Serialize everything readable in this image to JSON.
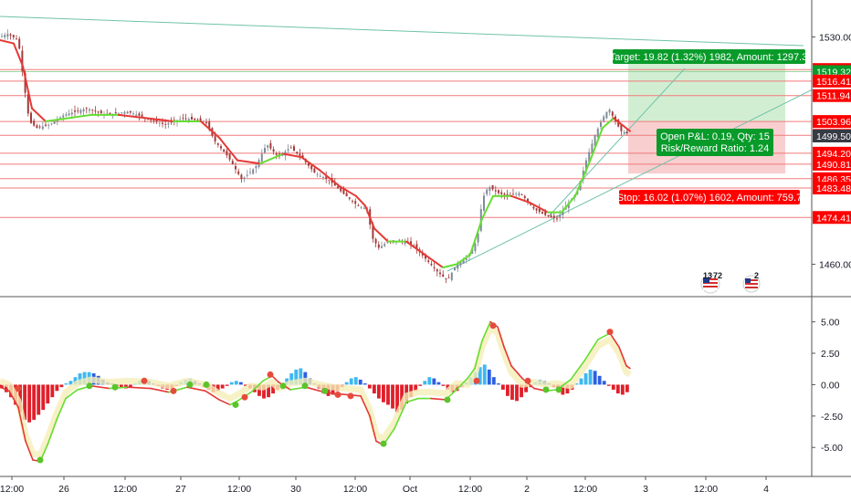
{
  "colors": {
    "background": "#ffffff",
    "axis_line": "#555555",
    "hline": "#f07a7a",
    "tag_red": "#ff0000",
    "tag_dark": "#363a45",
    "tag_green": "#089b2a",
    "profit_zone": "#cdeccd",
    "loss_zone": "#f7c9ca",
    "trendline": "#6fc3a8",
    "candle_up": "#7f8c99",
    "candle_down": "#a23b3b",
    "ma_red": "#e53935",
    "ma_green": "#66dd33",
    "hist_red": "#e0202a",
    "hist_blue": "#2d5fe0",
    "hist_lightblue": "#3fb8f0"
  },
  "chart_data": [
    {
      "type": "candlestick",
      "title": "",
      "ylim": [
        1452,
        1538
      ],
      "y_ticks": [
        1530.0,
        1460.0
      ],
      "price_levels": [
        {
          "label": "1519.96",
          "value": 1519.96,
          "style": "red"
        },
        {
          "label": "1519.32",
          "value": 1519.32,
          "style": "green"
        },
        {
          "label": "1516.41",
          "value": 1516.41,
          "style": "red"
        },
        {
          "label": "1511.94",
          "value": 1511.94,
          "style": "red"
        },
        {
          "label": "1503.96",
          "value": 1503.96,
          "style": "red"
        },
        {
          "label": "1499.69",
          "value": 1499.69,
          "style": "red"
        },
        {
          "label": "1499.50",
          "value": 1499.5,
          "style": "dark"
        },
        {
          "label": "1494.20",
          "value": 1494.2,
          "style": "red"
        },
        {
          "label": "1490.81",
          "value": 1490.81,
          "style": "red"
        },
        {
          "label": "1486.35",
          "value": 1486.35,
          "style": "red"
        },
        {
          "label": "1483.48",
          "value": 1483.48,
          "style": "red"
        },
        {
          "label": "1474.41",
          "value": 1474.41,
          "style": "red"
        }
      ],
      "price_path": [
        [
          0,
          1530
        ],
        [
          8,
          1531
        ],
        [
          20,
          1529
        ],
        [
          26,
          1516
        ],
        [
          32,
          1504
        ],
        [
          40,
          1502
        ],
        [
          55,
          1503
        ],
        [
          70,
          1506
        ],
        [
          95,
          1508
        ],
        [
          115,
          1506
        ],
        [
          140,
          1507
        ],
        [
          160,
          1505
        ],
        [
          180,
          1503
        ],
        [
          200,
          1505
        ],
        [
          225,
          1504
        ],
        [
          235,
          1498
        ],
        [
          250,
          1493
        ],
        [
          265,
          1486
        ],
        [
          280,
          1490
        ],
        [
          292,
          1497
        ],
        [
          305,
          1493
        ],
        [
          318,
          1496
        ],
        [
          330,
          1493
        ],
        [
          345,
          1488
        ],
        [
          360,
          1486
        ],
        [
          375,
          1482
        ],
        [
          392,
          1478
        ],
        [
          402,
          1477
        ],
        [
          408,
          1468
        ],
        [
          415,
          1465
        ],
        [
          425,
          1467
        ],
        [
          440,
          1467
        ],
        [
          452,
          1466
        ],
        [
          462,
          1463
        ],
        [
          478,
          1458
        ],
        [
          490,
          1455
        ],
        [
          500,
          1460
        ],
        [
          512,
          1462
        ],
        [
          520,
          1466
        ],
        [
          524,
          1470
        ],
        [
          528,
          1480
        ],
        [
          535,
          1484
        ],
        [
          545,
          1482
        ],
        [
          555,
          1481
        ],
        [
          570,
          1482
        ],
        [
          585,
          1477
        ],
        [
          598,
          1475
        ],
        [
          610,
          1474
        ],
        [
          620,
          1478
        ],
        [
          632,
          1482
        ],
        [
          642,
          1492
        ],
        [
          652,
          1500
        ],
        [
          660,
          1505
        ],
        [
          667,
          1508
        ],
        [
          672,
          1505
        ],
        [
          680,
          1501
        ],
        [
          690,
          1500
        ]
      ],
      "ma_path": [
        [
          0,
          1529
        ],
        [
          15,
          1528
        ],
        [
          25,
          1521
        ],
        [
          35,
          1508
        ],
        [
          50,
          1504
        ],
        [
          75,
          1505
        ],
        [
          100,
          1506
        ],
        [
          130,
          1506
        ],
        [
          160,
          1505
        ],
        [
          190,
          1504
        ],
        [
          220,
          1504
        ],
        [
          240,
          1499
        ],
        [
          260,
          1492
        ],
        [
          285,
          1491
        ],
        [
          310,
          1494
        ],
        [
          330,
          1493
        ],
        [
          350,
          1489
        ],
        [
          372,
          1484
        ],
        [
          390,
          1481
        ],
        [
          400,
          1478
        ],
        [
          410,
          1471
        ],
        [
          425,
          1467
        ],
        [
          445,
          1467
        ],
        [
          465,
          1463
        ],
        [
          485,
          1459
        ],
        [
          500,
          1460
        ],
        [
          515,
          1463
        ],
        [
          528,
          1474
        ],
        [
          540,
          1481
        ],
        [
          560,
          1481
        ],
        [
          580,
          1479
        ],
        [
          600,
          1476
        ],
        [
          615,
          1476
        ],
        [
          630,
          1481
        ],
        [
          645,
          1491
        ],
        [
          660,
          1502
        ],
        [
          672,
          1505
        ],
        [
          690,
          1501
        ]
      ],
      "x_ticks": [
        {
          "label": "12:00",
          "x": 13
        },
        {
          "label": "26",
          "x": 70
        },
        {
          "label": "12:00",
          "x": 137
        },
        {
          "label": "27",
          "x": 198
        },
        {
          "label": "12:00",
          "x": 262
        },
        {
          "label": "30",
          "x": 324
        },
        {
          "label": "12:00",
          "x": 389
        },
        {
          "label": "Oct",
          "x": 449
        },
        {
          "label": "12:00",
          "x": 515
        },
        {
          "label": "2",
          "x": 577
        },
        {
          "label": "12:00",
          "x": 641
        },
        {
          "label": "3",
          "x": 707
        },
        {
          "label": "12:00",
          "x": 773
        },
        {
          "label": "4",
          "x": 839
        }
      ],
      "position_tool": {
        "entry": 1503.96,
        "target": 1523.78,
        "stop": 1487.94,
        "target_label": "Target: 19.82 (1.32%) 1982, Amount: 1297.3",
        "pnl_label": "Open P&L: 0.19, Qty: 15",
        "rr_label": "Risk/Reward Ratio: 1.24",
        "stop_label": "Stop: 16.02 (1.07%) 1602, Amount: 759.7"
      },
      "badges": [
        "13",
        "72",
        "2"
      ]
    },
    {
      "type": "histogram-oscillator",
      "title": "",
      "ylim": [
        -6.8,
        6.5
      ],
      "y_ticks": [
        "5.00",
        "2.50",
        "0.00",
        "-2.50",
        "-5.00"
      ],
      "y_tick_values": [
        5,
        2.5,
        0,
        -2.5,
        -5
      ],
      "oscillator_path": [
        [
          0,
          -0.2
        ],
        [
          10,
          -0.5
        ],
        [
          20,
          -1.8
        ],
        [
          28,
          -4.5
        ],
        [
          36,
          -6.0
        ],
        [
          44,
          -6.1
        ],
        [
          52,
          -4.8
        ],
        [
          62,
          -2.8
        ],
        [
          72,
          -1.1
        ],
        [
          85,
          -0.4
        ],
        [
          100,
          -0.1
        ],
        [
          120,
          -0.3
        ],
        [
          140,
          -0.2
        ],
        [
          165,
          -0.3
        ],
        [
          185,
          -0.6
        ],
        [
          205,
          -0.2
        ],
        [
          225,
          -0.5
        ],
        [
          240,
          -1.2
        ],
        [
          252,
          -1.6
        ],
        [
          260,
          -1.3
        ],
        [
          275,
          -0.6
        ],
        [
          288,
          0.3
        ],
        [
          298,
          0.7
        ],
        [
          305,
          0.2
        ],
        [
          318,
          -0.4
        ],
        [
          335,
          -0.2
        ],
        [
          350,
          -0.5
        ],
        [
          365,
          -0.7
        ],
        [
          380,
          -0.8
        ],
        [
          395,
          -0.9
        ],
        [
          405,
          -2.5
        ],
        [
          412,
          -4.5
        ],
        [
          420,
          -4.8
        ],
        [
          432,
          -3.5
        ],
        [
          445,
          -1.4
        ],
        [
          458,
          -1.1
        ],
        [
          472,
          -1.1
        ],
        [
          488,
          -1.2
        ],
        [
          500,
          -0.4
        ],
        [
          512,
          0.5
        ],
        [
          520,
          1.3
        ],
        [
          528,
          3.5
        ],
        [
          537,
          5.0
        ],
        [
          545,
          4.6
        ],
        [
          552,
          3.0
        ],
        [
          560,
          1.5
        ],
        [
          572,
          0.5
        ],
        [
          585,
          -0.3
        ],
        [
          598,
          -0.5
        ],
        [
          610,
          -0.4
        ],
        [
          625,
          0.4
        ],
        [
          640,
          1.9
        ],
        [
          655,
          3.6
        ],
        [
          668,
          4.1
        ],
        [
          678,
          3.0
        ],
        [
          686,
          1.5
        ],
        [
          690,
          1.3
        ]
      ],
      "histogram": [
        -0.3,
        -0.6,
        -1.0,
        -1.6,
        -2.2,
        -2.8,
        -3.0,
        -2.8,
        -2.4,
        -2.0,
        -1.5,
        -1.0,
        -0.5,
        -0.2,
        0.1,
        0.3,
        0.6,
        0.9,
        1.0,
        1.0,
        0.9,
        0.7,
        0.4,
        0.2,
        0.1,
        -0.1,
        -0.2,
        -0.3,
        -0.2,
        0.1,
        0.3,
        0.4,
        0.3,
        0.1,
        -0.1,
        -0.3,
        -0.4,
        -0.3,
        -0.1,
        0.2,
        0.4,
        0.5,
        0.3,
        0.1,
        -0.2,
        -0.4,
        -0.6,
        -0.5,
        -0.3,
        -0.1,
        0.2,
        0.3,
        0.2,
        -0.1,
        -0.3,
        -0.6,
        -0.9,
        -1.1,
        -1.0,
        -0.7,
        -0.4,
        0.1,
        0.5,
        0.9,
        1.2,
        1.3,
        1.0,
        0.5,
        0.1,
        -0.3,
        -0.7,
        -0.9,
        -0.8,
        -0.5,
        -0.2,
        0.2,
        0.5,
        0.6,
        0.4,
        0.1,
        -0.3,
        -0.7,
        -1.1,
        -1.4,
        -1.6,
        -1.9,
        -2.2,
        -2.0,
        -1.5,
        -1.0,
        -0.5,
        -0.1,
        0.3,
        0.6,
        0.5,
        0.2,
        -0.1,
        -0.4,
        -0.6,
        -0.5,
        -0.2,
        0.2,
        0.6,
        1.0,
        1.4,
        1.6,
        1.2,
        0.6,
        0.1,
        -0.4,
        -0.9,
        -1.2,
        -1.3,
        -1.0,
        -0.6,
        -0.2,
        0.2,
        0.4,
        0.3,
        0.1,
        -0.2,
        -0.5,
        -0.8,
        -0.7,
        -0.4,
        0.1,
        0.5,
        0.9,
        1.2,
        1.1,
        0.7,
        0.3,
        -0.1,
        -0.4,
        -0.7,
        -0.8,
        -0.6
      ],
      "markers": [
        {
          "x": 20,
          "v": -0.3,
          "c": "red"
        },
        {
          "x": 44,
          "v": -6.0,
          "c": "green"
        },
        {
          "x": 98,
          "v": -0.1,
          "c": "green"
        },
        {
          "x": 126,
          "v": -0.2,
          "c": "green"
        },
        {
          "x": 158,
          "v": 0.3,
          "c": "red"
        },
        {
          "x": 190,
          "v": -0.5,
          "c": "red"
        },
        {
          "x": 208,
          "v": 0.0,
          "c": "green"
        },
        {
          "x": 226,
          "v": 0.0,
          "c": "green"
        },
        {
          "x": 258,
          "v": -1.6,
          "c": "green"
        },
        {
          "x": 268,
          "v": -1.0,
          "c": "red"
        },
        {
          "x": 296,
          "v": 0.8,
          "c": "red"
        },
        {
          "x": 310,
          "v": -0.1,
          "c": "green"
        },
        {
          "x": 334,
          "v": -0.1,
          "c": "green"
        },
        {
          "x": 356,
          "v": -0.5,
          "c": "green"
        },
        {
          "x": 370,
          "v": -0.8,
          "c": "red"
        },
        {
          "x": 384,
          "v": -0.9,
          "c": "red"
        },
        {
          "x": 420,
          "v": -4.7,
          "c": "green"
        },
        {
          "x": 490,
          "v": -1.2,
          "c": "green"
        },
        {
          "x": 522,
          "v": 0.3,
          "c": "red"
        },
        {
          "x": 540,
          "v": 4.7,
          "c": "red"
        },
        {
          "x": 578,
          "v": 0.3,
          "c": "red"
        },
        {
          "x": 598,
          "v": -0.4,
          "c": "green"
        },
        {
          "x": 612,
          "v": -0.4,
          "c": "green"
        },
        {
          "x": 668,
          "v": 4.2,
          "c": "red"
        }
      ]
    }
  ]
}
